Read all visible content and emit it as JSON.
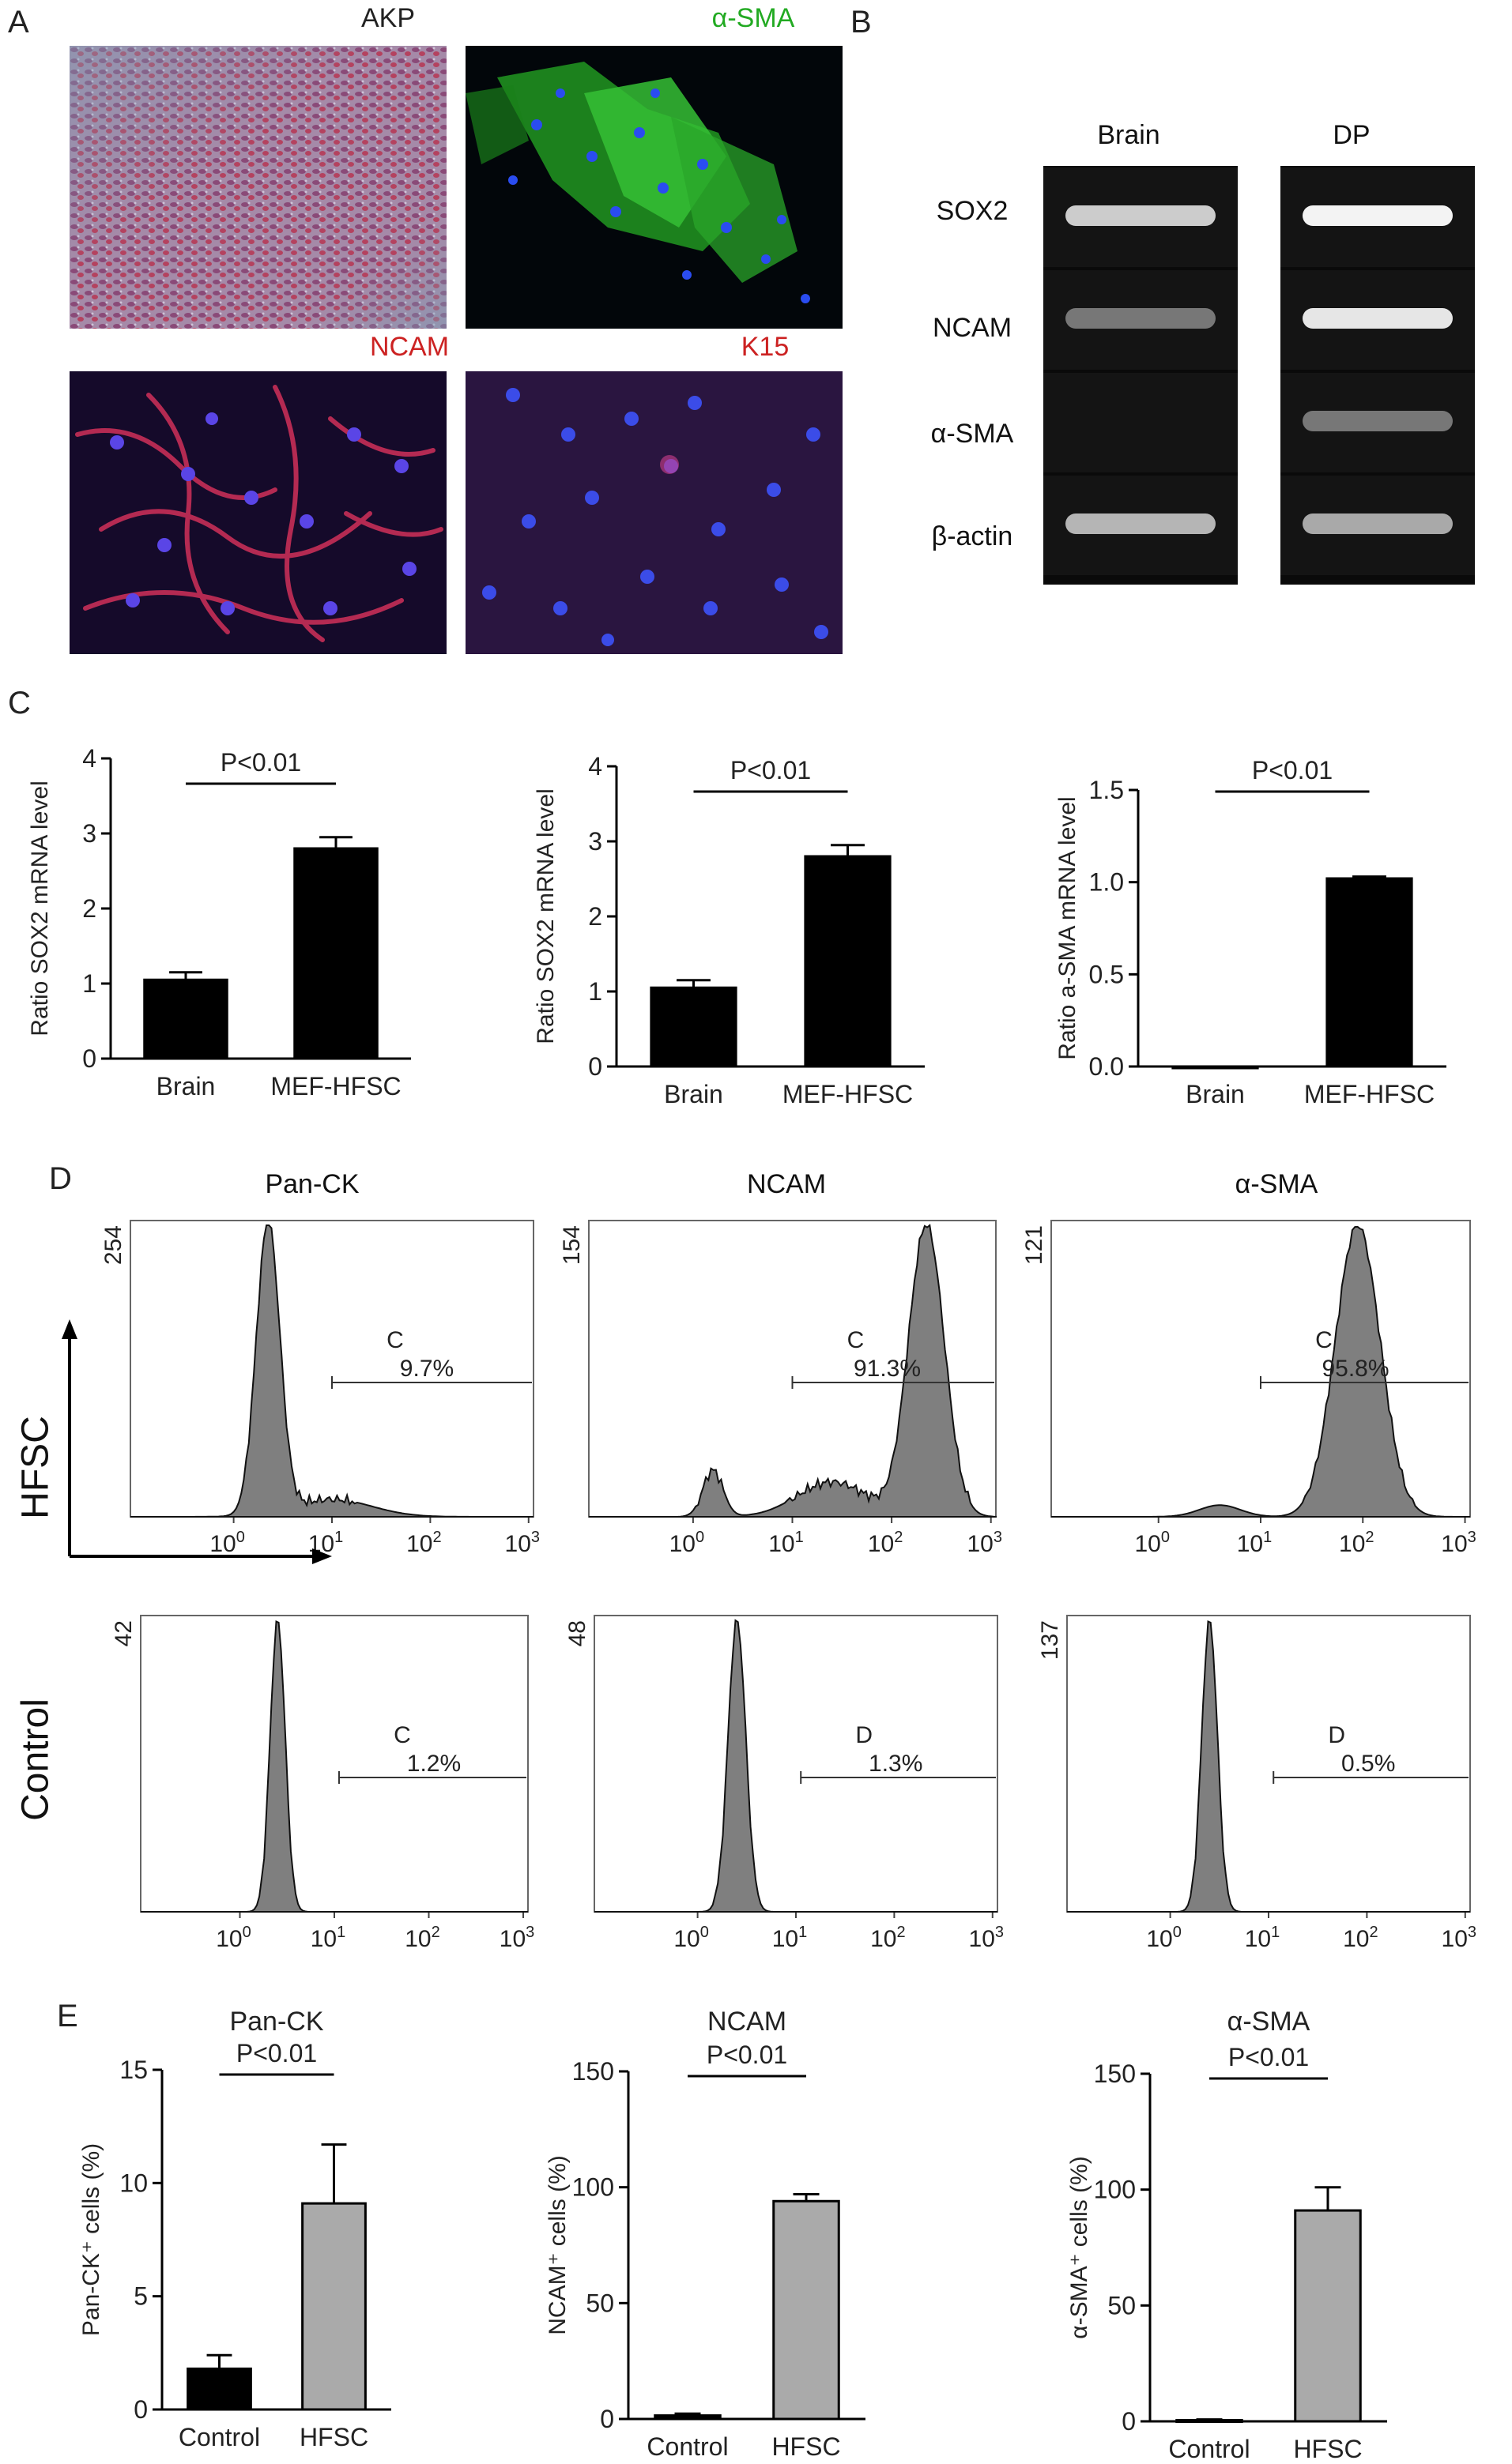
{
  "panel_letters": {
    "a": "A",
    "b": "B",
    "c": "C",
    "d": "D",
    "e": "E"
  },
  "panelA": {
    "labels": [
      "AKP",
      "α-SMA",
      "NCAM",
      "K15"
    ],
    "label_colors": [
      "#222222",
      "#22aa22",
      "#cc2222",
      "#cc2222"
    ]
  },
  "panelB": {
    "columns": [
      "Brain",
      "DP"
    ],
    "rows": [
      "SOX2",
      "NCAM",
      "α-SMA",
      "β-actin"
    ],
    "band_intensity": {
      "Brain": [
        0.85,
        0.45,
        0.0,
        0.75
      ],
      "DP": [
        1.0,
        0.95,
        0.45,
        0.7
      ]
    }
  },
  "flow": {
    "columns": [
      "Pan-CK",
      "NCAM",
      "α-SMA"
    ],
    "row_labels": [
      "HFSC",
      "Control"
    ],
    "hfsc": [
      {
        "ymax": "254",
        "gate": "C",
        "pct": "9.7%"
      },
      {
        "ymax": "154",
        "gate": "C",
        "pct": "91.3%"
      },
      {
        "ymax": "121",
        "gate": "C",
        "pct": "95.8%"
      }
    ],
    "control": [
      {
        "ymax": "42",
        "gate": "C",
        "pct": "1.2%"
      },
      {
        "ymax": "48",
        "gate": "D",
        "pct": "1.3%"
      },
      {
        "ymax": "137",
        "gate": "D",
        "pct": "0.5%"
      }
    ],
    "xticks": [
      "10",
      "10",
      "10",
      "10"
    ],
    "xtick_exps": [
      "0",
      "1",
      "2",
      "3"
    ]
  },
  "chart_data": [
    {
      "panel": "C",
      "type": "bar",
      "categories": [
        "Brain",
        "MEF-HFSC"
      ],
      "values": [
        1.05,
        2.8
      ],
      "errors": [
        0.1,
        0.15
      ],
      "ylabel": "Ratio SOX2 mRNA level",
      "ylim": [
        0,
        4
      ],
      "yticks": [
        "0",
        "1",
        "2",
        "3",
        "4"
      ],
      "annotation": "P<0.01",
      "bar_colors": [
        "#000000",
        "#000000"
      ]
    },
    {
      "panel": "C",
      "type": "bar",
      "categories": [
        "Brain",
        "MEF-HFSC"
      ],
      "values": [
        1.05,
        2.8
      ],
      "errors": [
        0.1,
        0.15
      ],
      "ylabel": "Ratio SOX2 mRNA level",
      "ylim": [
        0,
        4
      ],
      "yticks": [
        "0",
        "1",
        "2",
        "3",
        "4"
      ],
      "annotation": "P<0.01",
      "bar_colors": [
        "#000000",
        "#000000"
      ]
    },
    {
      "panel": "C",
      "type": "bar",
      "categories": [
        "Brain",
        "MEF-HFSC"
      ],
      "values": [
        0.0,
        1.02
      ],
      "errors": [
        0.0,
        0.01
      ],
      "ylabel": "Ratio a-SMA mRNA level",
      "ylim": [
        0,
        1.5
      ],
      "yticks": [
        "0.0",
        "0.5",
        "1.0",
        "1.5"
      ],
      "annotation": "P<0.01",
      "bar_colors": [
        "#000000",
        "#000000"
      ]
    },
    {
      "panel": "E",
      "type": "bar",
      "title": "Pan-CK",
      "categories": [
        "Control",
        "HFSC"
      ],
      "values": [
        1.8,
        9.1
      ],
      "errors": [
        0.6,
        2.6
      ],
      "ylabel": "Pan-CK⁺ cells (%)",
      "ylim": [
        0,
        15
      ],
      "yticks": [
        "0",
        "5",
        "10",
        "15"
      ],
      "annotation": "P<0.01",
      "bar_colors": [
        "#000000",
        "#aaaaaa"
      ]
    },
    {
      "panel": "E",
      "type": "bar",
      "title": "NCAM",
      "categories": [
        "Control",
        "HFSC"
      ],
      "values": [
        1.5,
        94
      ],
      "errors": [
        0.8,
        3
      ],
      "ylabel": "NCAM⁺ cells (%)",
      "ylim": [
        0,
        150
      ],
      "yticks": [
        "0",
        "50",
        "100",
        "150"
      ],
      "annotation": "P<0.01",
      "bar_colors": [
        "#000000",
        "#aaaaaa"
      ]
    },
    {
      "panel": "E",
      "type": "bar",
      "title": "α-SMA",
      "categories": [
        "Control",
        "HFSC"
      ],
      "values": [
        0.5,
        91
      ],
      "errors": [
        0.3,
        10
      ],
      "ylabel": "α-SMA⁺ cells (%)",
      "ylim": [
        0,
        150
      ],
      "yticks": [
        "0",
        "50",
        "100",
        "150"
      ],
      "annotation": "P<0.01",
      "bar_colors": [
        "#000000",
        "#aaaaaa"
      ]
    }
  ]
}
